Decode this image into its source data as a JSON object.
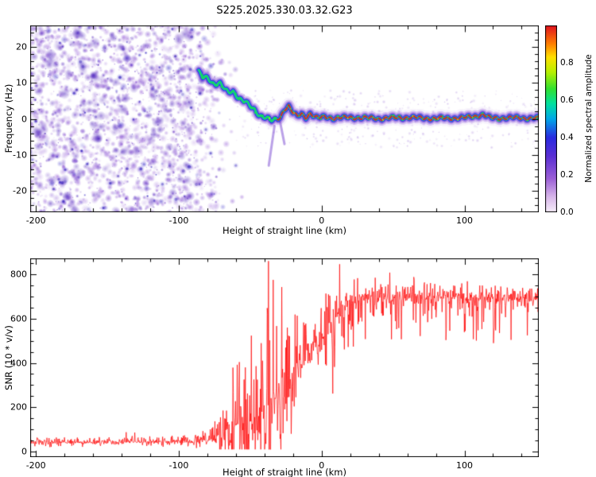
{
  "title": "S225.2025.330.03.32.G23",
  "palette": {
    "background": "#ffffff",
    "axis": "#000000",
    "snr_line": "#ff0000"
  },
  "chart_data": [
    {
      "type": "heatmap",
      "title": "S225.2025.330.03.32.G23",
      "xlabel": "Height of straight line (km)",
      "ylabel": "Frequency (Hz)",
      "xlim": [
        -204,
        152
      ],
      "ylim": [
        -26,
        26
      ],
      "x_ticks": [
        -200,
        -100,
        0,
        100
      ],
      "y_ticks": [
        20,
        10,
        0,
        -10,
        -20
      ],
      "x_minor_step": 20,
      "y_minor_step": 2,
      "grid": false,
      "colorbar": {
        "label": "Normalized spectral amplitude",
        "range": [
          0,
          1
        ],
        "ticks": [
          {
            "value": 0.0,
            "label": "0.0"
          },
          {
            "value": 0.2,
            "label": "0.2"
          },
          {
            "value": 0.4,
            "label": "0.4"
          },
          {
            "value": 0.6,
            "label": "0.6"
          },
          {
            "value": 0.8,
            "label": "0.8"
          }
        ],
        "stops": [
          [
            0.0,
            "#f6eef9"
          ],
          [
            0.08,
            "#d9b8ea"
          ],
          [
            0.18,
            "#9b5fd6"
          ],
          [
            0.3,
            "#5a2fd4"
          ],
          [
            0.4,
            "#2a2ae0"
          ],
          [
            0.5,
            "#00a8e8"
          ],
          [
            0.58,
            "#00e0a0"
          ],
          [
            0.66,
            "#30e030"
          ],
          [
            0.75,
            "#b8f000"
          ],
          [
            0.83,
            "#ffe000"
          ],
          [
            0.9,
            "#ff8000"
          ],
          [
            1.0,
            "#e01020"
          ]
        ]
      },
      "noise_field": {
        "x_range": [
          -204,
          -48
        ],
        "fade_start": -92,
        "count": 2600,
        "big_blob_count": 130,
        "seed": 7
      },
      "speckle_field": {
        "x_range": [
          -60,
          152
        ],
        "f_spread": 8,
        "count": 380,
        "seed": 21
      },
      "signal_ridge": [
        [
          -86,
          13
        ],
        [
          -83,
          11.5
        ],
        [
          -80,
          11.8
        ],
        [
          -77,
          10.2
        ],
        [
          -74,
          9.6
        ],
        [
          -71,
          9.8
        ],
        [
          -68,
          8.2
        ],
        [
          -65,
          7.4
        ],
        [
          -62,
          7.8
        ],
        [
          -59,
          6.2
        ],
        [
          -56,
          5.2
        ],
        [
          -53,
          4.6
        ],
        [
          -50,
          3.4
        ],
        [
          -47,
          2.6
        ],
        [
          -44,
          1.2
        ],
        [
          -41,
          0.6
        ],
        [
          -38,
          0.2
        ],
        [
          -35,
          -0.6
        ],
        [
          -32,
          -0.2
        ],
        [
          -29,
          0.4
        ],
        [
          -26,
          2.8
        ],
        [
          -23,
          3.6
        ],
        [
          -20,
          1.6
        ],
        [
          -17,
          0.6
        ],
        [
          -14,
          1.4
        ],
        [
          -11,
          0.4
        ],
        [
          -8,
          1.6
        ],
        [
          -5,
          0.6
        ],
        [
          -2,
          0.2
        ],
        [
          2,
          0.6
        ],
        [
          8,
          0.2
        ],
        [
          20,
          0.4
        ],
        [
          40,
          0.1
        ],
        [
          60,
          0.4
        ],
        [
          80,
          0.1
        ],
        [
          100,
          0.3
        ],
        [
          113,
          1.2
        ],
        [
          118,
          0.2
        ],
        [
          130,
          0.3
        ],
        [
          152,
          0.2
        ]
      ],
      "carrier_start_x": -31,
      "streaks": [
        [
          [
            -33,
            -2
          ],
          [
            -37,
            -13
          ]
        ],
        [
          [
            -29,
            -1
          ],
          [
            -26,
            -7
          ]
        ]
      ]
    },
    {
      "type": "line",
      "xlabel": "Height of straight line (km)",
      "ylabel": "SNR (10 * v/v)",
      "xlim": [
        -204,
        152
      ],
      "ylim": [
        -25,
        872
      ],
      "x_ticks": [
        -200,
        -100,
        0,
        100
      ],
      "y_ticks": [
        0,
        200,
        400,
        600,
        800
      ],
      "x_minor_step": 20,
      "y_minor_step": 50,
      "grid": false,
      "seed": 13,
      "series": [
        {
          "name": "SNR",
          "color": "#ff0000",
          "profile": [
            [
              -204,
              40,
              22
            ],
            [
              -150,
              42,
              22
            ],
            [
              -110,
              44,
              24
            ],
            [
              -90,
              46,
              28
            ],
            [
              -78,
              52,
              45
            ],
            [
              -70,
              62,
              120
            ],
            [
              -64,
              80,
              260
            ],
            [
              -58,
              110,
              330
            ],
            [
              -53,
              105,
              300
            ],
            [
              -48,
              95,
              260
            ],
            [
              -44,
              115,
              310
            ],
            [
              -40,
              150,
              430
            ],
            [
              -36,
              210,
              560
            ],
            [
              -33,
              240,
              560
            ],
            [
              -30,
              190,
              420
            ],
            [
              -27,
              240,
              360
            ],
            [
              -24,
              290,
              310
            ],
            [
              -21,
              320,
              280
            ],
            [
              -18,
              350,
              250
            ],
            [
              -15,
              385,
              225
            ],
            [
              -12,
              420,
              200
            ],
            [
              -9,
              450,
              185
            ],
            [
              -6,
              470,
              175
            ],
            [
              -3,
              435,
              200
            ],
            [
              0,
              480,
              185
            ],
            [
              4,
              540,
              155
            ],
            [
              8,
              580,
              135
            ],
            [
              12,
              620,
              115
            ],
            [
              16,
              650,
              95
            ],
            [
              20,
              672,
              80
            ],
            [
              25,
              692,
              70
            ],
            [
              35,
              702,
              62
            ],
            [
              50,
              696,
              64
            ],
            [
              65,
              702,
              60
            ],
            [
              80,
              690,
              64
            ],
            [
              95,
              700,
              56
            ],
            [
              110,
              696,
              60
            ],
            [
              125,
              686,
              64
            ],
            [
              140,
              682,
              60
            ],
            [
              152,
              676,
              56
            ]
          ]
        }
      ]
    }
  ]
}
